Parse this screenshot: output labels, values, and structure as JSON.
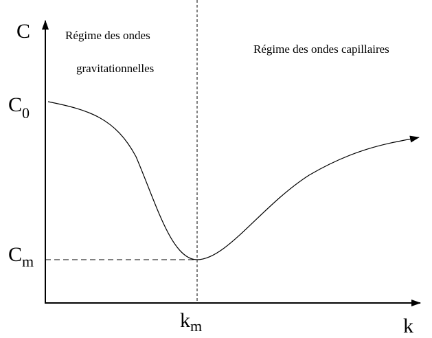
{
  "axes": {
    "y_label": "C",
    "x_label": "k"
  },
  "markers": [
    {
      "symbol": "C",
      "subscript": "0"
    },
    {
      "symbol": "C",
      "subscript": "m"
    },
    {
      "symbol": "k",
      "subscript": "m"
    }
  ],
  "regions": {
    "left": [
      "Régime des ondes",
      "gravitationnelles"
    ],
    "right": "Régime des ondes capillaires"
  }
}
